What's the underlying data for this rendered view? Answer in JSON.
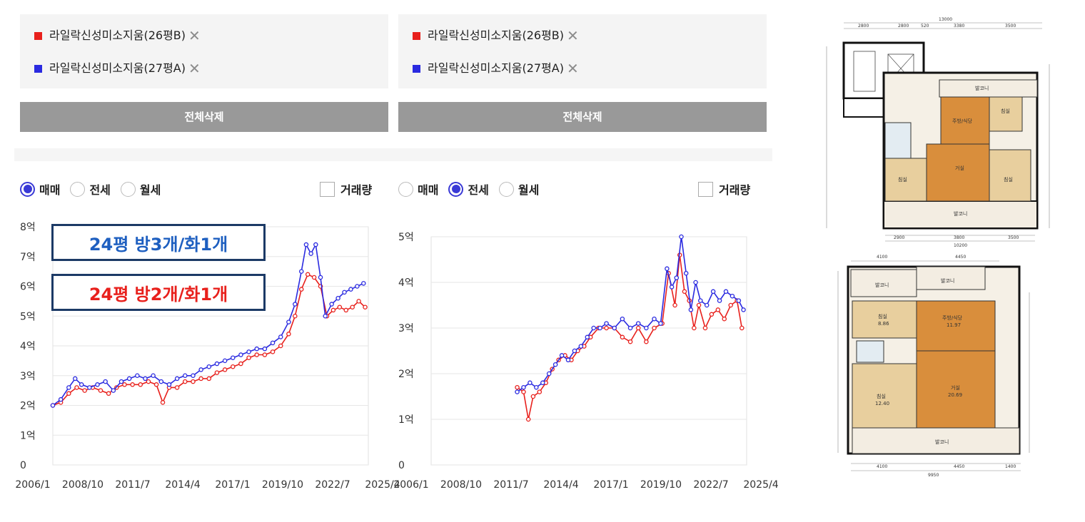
{
  "panels": [
    {
      "legend": [
        {
          "label": "라일락신성미소지움(26평B)",
          "color": "#e8201c",
          "remove": "✕"
        },
        {
          "label": "라일락신성미소지움(27평A)",
          "color": "#2a2ae0",
          "remove": "✕"
        }
      ],
      "delete_all": "전체삭제",
      "modes": [
        {
          "label": "매매",
          "selected": true
        },
        {
          "label": "전세",
          "selected": false
        },
        {
          "label": "월세",
          "selected": false
        }
      ],
      "volume_label": "거래량",
      "annotations": [
        "24평 방3개/화1개",
        "24평 방2개/화1개"
      ]
    },
    {
      "legend": [
        {
          "label": "라일락신성미소지움(26평B)",
          "color": "#e8201c",
          "remove": "✕"
        },
        {
          "label": "라일락신성미소지움(27평A)",
          "color": "#2a2ae0",
          "remove": "✕"
        }
      ],
      "delete_all": "전체삭제",
      "modes": [
        {
          "label": "매매",
          "selected": false
        },
        {
          "label": "전세",
          "selected": true
        },
        {
          "label": "월세",
          "selected": false
        }
      ],
      "volume_label": "거래량"
    }
  ],
  "chart_data": [
    {
      "type": "line",
      "title": "",
      "xlabel": "",
      "ylabel": "",
      "x_ticks": [
        "2006/1",
        "2008/10",
        "2011/7",
        "2014/4",
        "2017/1",
        "2019/10",
        "2022/7",
        "2025/4"
      ],
      "x_range": [
        2006.0,
        2025.8
      ],
      "y_ticks": [
        "0",
        "1억",
        "2억",
        "3억",
        "4억",
        "5억",
        "6억",
        "7억",
        "8억"
      ],
      "ylim": [
        0,
        8
      ],
      "y_unit": "억",
      "grid": true,
      "series": [
        {
          "name": "라일락신성미소지움(26평B)",
          "color": "#e8201c",
          "points": [
            [
              2006.0,
              2.0
            ],
            [
              2006.5,
              2.1
            ],
            [
              2007.0,
              2.4
            ],
            [
              2007.5,
              2.6
            ],
            [
              2008.0,
              2.5
            ],
            [
              2008.5,
              2.6
            ],
            [
              2009.0,
              2.5
            ],
            [
              2009.5,
              2.4
            ],
            [
              2010.0,
              2.6
            ],
            [
              2010.5,
              2.7
            ],
            [
              2011.0,
              2.7
            ],
            [
              2011.5,
              2.7
            ],
            [
              2012.0,
              2.8
            ],
            [
              2012.5,
              2.7
            ],
            [
              2012.9,
              2.1
            ],
            [
              2013.3,
              2.6
            ],
            [
              2013.8,
              2.6
            ],
            [
              2014.3,
              2.8
            ],
            [
              2014.8,
              2.8
            ],
            [
              2015.3,
              2.9
            ],
            [
              2015.8,
              2.9
            ],
            [
              2016.3,
              3.1
            ],
            [
              2016.8,
              3.2
            ],
            [
              2017.3,
              3.3
            ],
            [
              2017.8,
              3.4
            ],
            [
              2018.3,
              3.6
            ],
            [
              2018.8,
              3.7
            ],
            [
              2019.3,
              3.7
            ],
            [
              2019.8,
              3.8
            ],
            [
              2020.3,
              4.0
            ],
            [
              2020.8,
              4.4
            ],
            [
              2021.2,
              5.0
            ],
            [
              2021.6,
              5.9
            ],
            [
              2022.0,
              6.4
            ],
            [
              2022.4,
              6.3
            ],
            [
              2022.8,
              6.0
            ],
            [
              2023.2,
              5.0
            ],
            [
              2023.6,
              5.2
            ],
            [
              2024.0,
              5.3
            ],
            [
              2024.4,
              5.2
            ],
            [
              2024.8,
              5.3
            ],
            [
              2025.2,
              5.5
            ],
            [
              2025.6,
              5.3
            ]
          ]
        },
        {
          "name": "라일락신성미소지움(27평A)",
          "color": "#2a2ae0",
          "points": [
            [
              2006.0,
              2.0
            ],
            [
              2006.5,
              2.2
            ],
            [
              2007.0,
              2.6
            ],
            [
              2007.4,
              2.9
            ],
            [
              2007.8,
              2.7
            ],
            [
              2008.3,
              2.6
            ],
            [
              2008.8,
              2.7
            ],
            [
              2009.3,
              2.8
            ],
            [
              2009.8,
              2.5
            ],
            [
              2010.3,
              2.8
            ],
            [
              2010.8,
              2.9
            ],
            [
              2011.3,
              3.0
            ],
            [
              2011.8,
              2.9
            ],
            [
              2012.3,
              3.0
            ],
            [
              2012.8,
              2.8
            ],
            [
              2013.3,
              2.7
            ],
            [
              2013.8,
              2.9
            ],
            [
              2014.3,
              3.0
            ],
            [
              2014.8,
              3.0
            ],
            [
              2015.3,
              3.2
            ],
            [
              2015.8,
              3.3
            ],
            [
              2016.3,
              3.4
            ],
            [
              2016.8,
              3.5
            ],
            [
              2017.3,
              3.6
            ],
            [
              2017.8,
              3.7
            ],
            [
              2018.3,
              3.8
            ],
            [
              2018.8,
              3.9
            ],
            [
              2019.3,
              3.9
            ],
            [
              2019.8,
              4.1
            ],
            [
              2020.3,
              4.3
            ],
            [
              2020.8,
              4.8
            ],
            [
              2021.2,
              5.4
            ],
            [
              2021.6,
              6.5
            ],
            [
              2021.9,
              7.4
            ],
            [
              2022.2,
              7.1
            ],
            [
              2022.5,
              7.4
            ],
            [
              2022.8,
              6.3
            ],
            [
              2023.1,
              5.0
            ],
            [
              2023.5,
              5.4
            ],
            [
              2023.9,
              5.6
            ],
            [
              2024.3,
              5.8
            ],
            [
              2024.7,
              5.9
            ],
            [
              2025.1,
              6.0
            ],
            [
              2025.5,
              6.1
            ]
          ]
        }
      ]
    },
    {
      "type": "line",
      "title": "",
      "xlabel": "",
      "ylabel": "",
      "x_ticks": [
        "2006/1",
        "2008/10",
        "2011/7",
        "2014/4",
        "2017/1",
        "2019/10",
        "2022/7",
        "2025/4"
      ],
      "x_range": [
        2006.0,
        2025.8
      ],
      "y_ticks": [
        "0",
        "1억",
        "2억",
        "3억",
        "4억",
        "5억"
      ],
      "ylim": [
        0,
        5
      ],
      "y_unit": "억",
      "grid": true,
      "series": [
        {
          "name": "라일락신성미소지움(26평B)",
          "color": "#e8201c",
          "points": [
            [
              2011.4,
              1.7
            ],
            [
              2011.8,
              1.6
            ],
            [
              2012.1,
              1.0
            ],
            [
              2012.4,
              1.5
            ],
            [
              2012.8,
              1.6
            ],
            [
              2013.2,
              1.8
            ],
            [
              2013.6,
              2.1
            ],
            [
              2014.0,
              2.3
            ],
            [
              2014.4,
              2.4
            ],
            [
              2014.8,
              2.3
            ],
            [
              2015.2,
              2.5
            ],
            [
              2015.6,
              2.6
            ],
            [
              2016.0,
              2.8
            ],
            [
              2016.5,
              3.0
            ],
            [
              2017.0,
              3.0
            ],
            [
              2017.5,
              3.0
            ],
            [
              2018.0,
              2.8
            ],
            [
              2018.5,
              2.7
            ],
            [
              2019.0,
              3.0
            ],
            [
              2019.5,
              2.7
            ],
            [
              2020.0,
              3.0
            ],
            [
              2020.5,
              3.1
            ],
            [
              2020.9,
              4.2
            ],
            [
              2021.3,
              3.5
            ],
            [
              2021.6,
              4.6
            ],
            [
              2021.9,
              3.8
            ],
            [
              2022.2,
              3.6
            ],
            [
              2022.5,
              3.0
            ],
            [
              2022.8,
              3.5
            ],
            [
              2023.2,
              3.0
            ],
            [
              2023.6,
              3.3
            ],
            [
              2024.0,
              3.4
            ],
            [
              2024.4,
              3.2
            ],
            [
              2024.8,
              3.5
            ],
            [
              2025.2,
              3.6
            ],
            [
              2025.5,
              3.0
            ]
          ]
        },
        {
          "name": "라일락신성미소지움(27평A)",
          "color": "#2a2ae0",
          "points": [
            [
              2011.4,
              1.6
            ],
            [
              2011.8,
              1.7
            ],
            [
              2012.2,
              1.8
            ],
            [
              2012.6,
              1.7
            ],
            [
              2013.0,
              1.8
            ],
            [
              2013.4,
              2.0
            ],
            [
              2013.8,
              2.2
            ],
            [
              2014.2,
              2.4
            ],
            [
              2014.6,
              2.3
            ],
            [
              2015.0,
              2.5
            ],
            [
              2015.4,
              2.6
            ],
            [
              2015.8,
              2.8
            ],
            [
              2016.2,
              3.0
            ],
            [
              2016.6,
              3.0
            ],
            [
              2017.0,
              3.1
            ],
            [
              2017.5,
              3.0
            ],
            [
              2018.0,
              3.2
            ],
            [
              2018.5,
              3.0
            ],
            [
              2019.0,
              3.1
            ],
            [
              2019.5,
              3.0
            ],
            [
              2020.0,
              3.2
            ],
            [
              2020.4,
              3.1
            ],
            [
              2020.8,
              4.3
            ],
            [
              2021.1,
              3.9
            ],
            [
              2021.4,
              4.1
            ],
            [
              2021.7,
              5.0
            ],
            [
              2022.0,
              4.2
            ],
            [
              2022.3,
              3.4
            ],
            [
              2022.6,
              4.0
            ],
            [
              2022.9,
              3.6
            ],
            [
              2023.3,
              3.5
            ],
            [
              2023.7,
              3.8
            ],
            [
              2024.1,
              3.6
            ],
            [
              2024.5,
              3.8
            ],
            [
              2024.9,
              3.7
            ],
            [
              2025.3,
              3.6
            ],
            [
              2025.6,
              3.4
            ]
          ]
        }
      ]
    }
  ],
  "floorplans": [
    {
      "name": "24평 방3개",
      "labels": {
        "top_width": "13000",
        "dim_2800a": "2800",
        "dim_2800b": "2800",
        "dim_520": "520",
        "dim_3380": "3380",
        "dim_3500": "3500",
        "balcony_top": "발코니",
        "kitchen": "주방/식당",
        "room_a": "침실",
        "living": "거실",
        "room_b": "침실",
        "room_c": "침실",
        "balcony_bottom": "발코니",
        "bottom_2900": "2900",
        "bottom_3800": "3800",
        "bottom_3500": "3500",
        "bottom_total": "10200"
      }
    },
    {
      "name": "24평 방2개",
      "labels": {
        "dim_4100": "4100",
        "dim_4450": "4450",
        "balcony_tl": "발코니",
        "balcony_tr": "발코니",
        "room_1": "침실",
        "room_1_area": "8.86",
        "kitchen": "주방/식당",
        "kitchen_area": "11.97",
        "room_2": "침실",
        "room_2_area": "12.40",
        "living": "거실",
        "living_area": "20.69",
        "balcony_bottom": "발코니",
        "bottom_4100": "4100",
        "bottom_4450": "4450",
        "bottom_1400": "1400",
        "bottom_total": "9950"
      }
    }
  ]
}
